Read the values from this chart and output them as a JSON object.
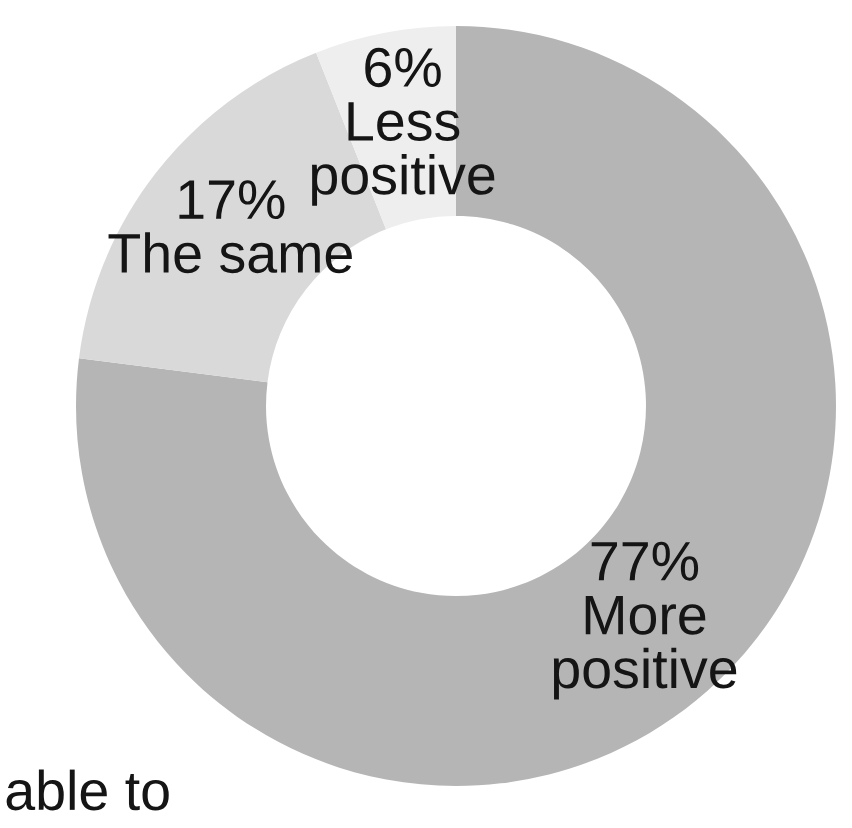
{
  "chart_data": {
    "type": "donut",
    "categories": [
      "More positive",
      "The same",
      "Less positive"
    ],
    "values": [
      77,
      17,
      6
    ],
    "colors": [
      "#b5b5b5",
      "#d9d9d9",
      "#eeeeee"
    ],
    "value_labels": [
      "77%",
      "17%",
      "6%"
    ],
    "annotations": [
      "able to"
    ]
  }
}
